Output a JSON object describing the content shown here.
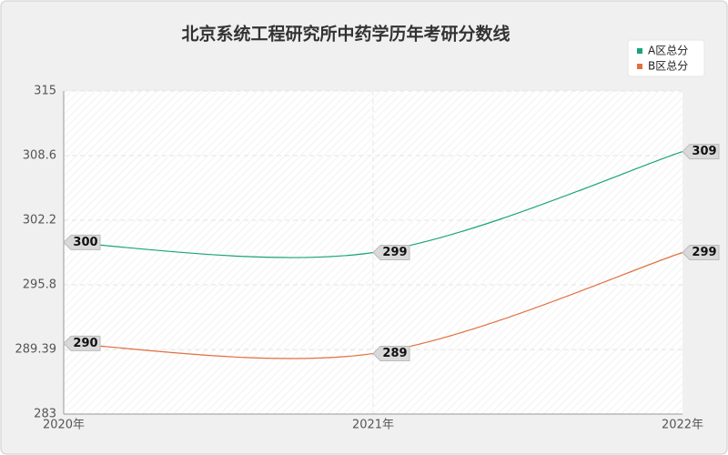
{
  "chart_data": {
    "type": "line",
    "title": "北京系统工程研究所中药学历年考研分数线",
    "categories": [
      "2020年",
      "2021年",
      "2022年"
    ],
    "series": [
      {
        "name": "A区总分",
        "color": "#1aa37a",
        "values": [
          300,
          299,
          309
        ]
      },
      {
        "name": "B区总分",
        "color": "#e0703f",
        "values": [
          290,
          289,
          299
        ]
      }
    ],
    "ylim": [
      283,
      315
    ],
    "yticks": [
      283,
      289.39,
      295.8,
      302.2,
      308.6,
      315
    ],
    "grid": true,
    "legend": "top-right"
  }
}
